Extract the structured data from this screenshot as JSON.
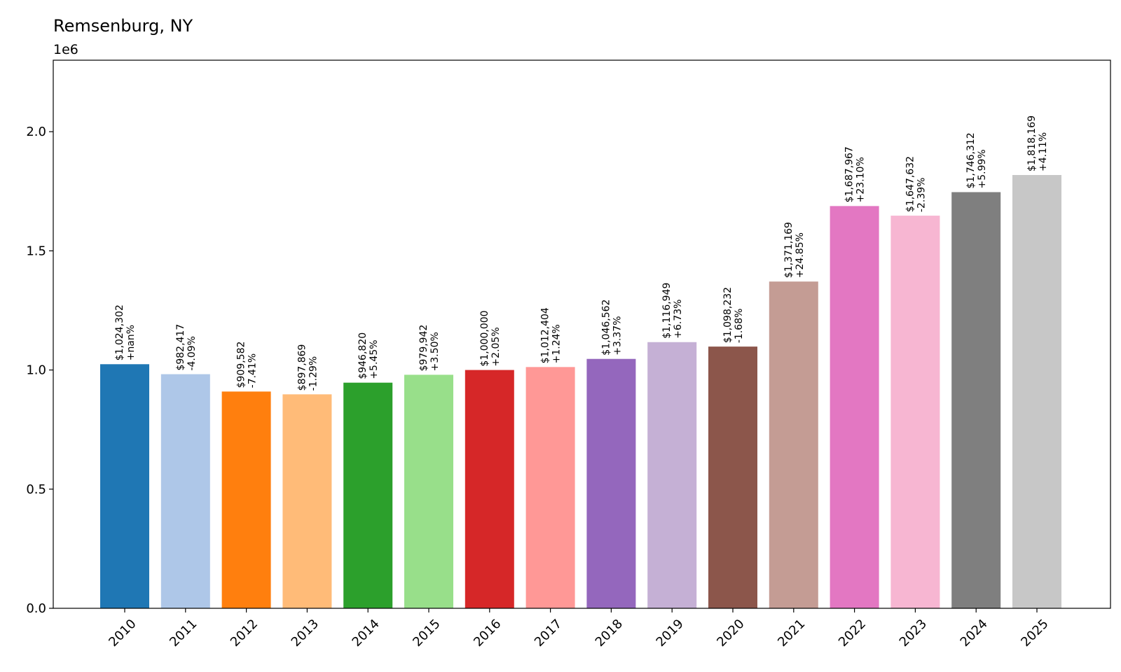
{
  "chart_data": {
    "type": "bar",
    "title": "Remsenburg, NY",
    "xlabel": "",
    "ylabel": "",
    "y_offset_label": "1e6",
    "ylim": [
      0,
      2300000
    ],
    "y_ticks": [
      0,
      500000,
      1000000,
      1500000,
      2000000
    ],
    "y_tick_labels": [
      "0.0",
      "0.5",
      "1.0",
      "1.5",
      "2.0"
    ],
    "grid": false,
    "categories": [
      "2010",
      "2011",
      "2012",
      "2013",
      "2014",
      "2015",
      "2016",
      "2017",
      "2018",
      "2019",
      "2020",
      "2021",
      "2022",
      "2023",
      "2024",
      "2025"
    ],
    "values": [
      1024302,
      982417,
      909582,
      897869,
      946820,
      979942,
      1000000,
      1012404,
      1046562,
      1116949,
      1098232,
      1371169,
      1687967,
      1647632,
      1746312,
      1818169
    ],
    "value_labels": [
      "$1,024,302",
      "$982,417",
      "$909,582",
      "$897,869",
      "$946,820",
      "$979,942",
      "$1,000,000",
      "$1,012,404",
      "$1,046,562",
      "$1,116,949",
      "$1,098,232",
      "$1,371,169",
      "$1,687,967",
      "$1,647,632",
      "$1,746,312",
      "$1,818,169"
    ],
    "change_labels": [
      "+nan%",
      "-4.09%",
      "-7.41%",
      "-1.29%",
      "+5.45%",
      "+3.50%",
      "+2.05%",
      "+1.24%",
      "+3.37%",
      "+6.73%",
      "-1.68%",
      "+24.85%",
      "+23.10%",
      "-2.39%",
      "+5.99%",
      "+4.11%"
    ],
    "colors": [
      "#1f77b4",
      "#aec7e8",
      "#ff7f0e",
      "#ffbb78",
      "#2ca02c",
      "#98df8a",
      "#d62728",
      "#ff9896",
      "#9467bd",
      "#c5b0d5",
      "#8c564b",
      "#c49c94",
      "#e377c2",
      "#f7b6d2",
      "#7f7f7f",
      "#c7c7c7"
    ]
  }
}
